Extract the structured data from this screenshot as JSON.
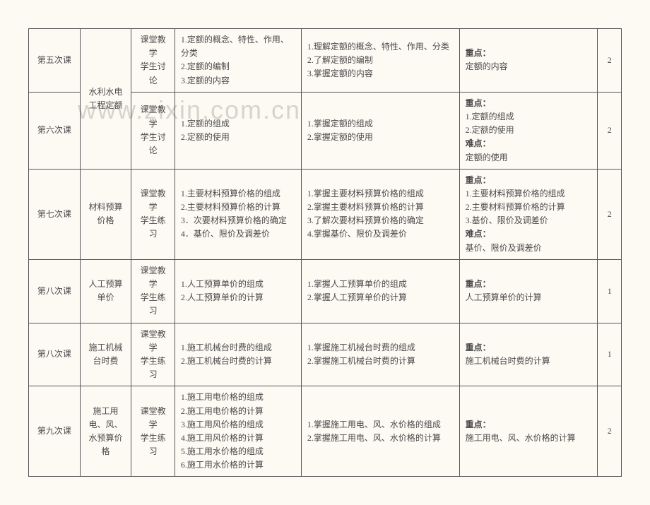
{
  "watermark": "www.zixin.com.cn",
  "labels": {
    "keypoint": "重点：",
    "difficulty": "难点："
  },
  "rows": [
    {
      "lesson": "第五次课",
      "method": "课堂教学\n学生讨论",
      "content": "1.定额的概念、特性、作用、分类\n2.定额的编制\n3.定额的内容",
      "req": "1.理解定额的概念、特性、作用、分类\n2.了解定额的编制\n3.掌握定额的内容",
      "key_points": "定额的内容",
      "hours": "2"
    },
    {
      "lesson": "第六次课",
      "topic": "水利水电工程定额",
      "method": "课堂教学\n学生讨论",
      "content": "1.定额的组成\n2.定额的使用",
      "req": "1.掌握定额的组成\n2.掌握定额的使用",
      "key_points": "1.定额的组成\n2.定额的使用",
      "diff_points": "定额的使用",
      "hours": "2"
    },
    {
      "lesson": "第七次课",
      "topic": "材料预算价格",
      "method": "课堂教学\n学生练习",
      "content": "1.主要材料预算价格的组成\n2.主要材料预算价格的计算\n3．次要材料预算价格的确定\n4．基价、限价及调差价",
      "req": "1.掌握主要材料预算价格的组成\n2.掌握主要材料预算价格的计算\n3.了解次要材料预算价格的确定\n4.掌握基价、限价及调差价",
      "key_points": "1.主要材料预算价格的组成\n2.主要材料预算价格的计算\n3.基价、限价及调差价",
      "diff_points": "基价、限价及调差价",
      "hours": "2"
    },
    {
      "lesson": "第八次课",
      "topic": "人工预算单价",
      "method": "课堂教学\n学生练习",
      "content": "1.人工预算单价的组成\n2.人工预算单价的计算",
      "req": "1.掌握人工预算单价的组成\n2.掌握人工预算单价的计算",
      "key_points": "人工预算单价的计算",
      "hours": "1"
    },
    {
      "lesson": "第八次课",
      "topic": "施工机械台时费",
      "method": "课堂教学\n学生练习",
      "content": "1.施工机械台时费的组成\n2.施工机械台时费的计算",
      "req": "1.掌握施工机械台时费的组成\n2.掌握施工机械台时费的计算",
      "key_points": "施工机械台时费的计算",
      "hours": "1"
    },
    {
      "lesson": "第九次课",
      "topic": "施工用电、风、水预算价格",
      "method": "课堂教学\n学生练习",
      "content": "1.施工用电价格的组成\n2.施工用电价格的计算\n3.施工用风价格的组成\n4.施工用风价格的计算\n5.施工用水价格的组成\n6.施工用水价格的计算",
      "req": "1.掌握施工用电、风、水价格的组成\n2.掌握施工用电、风、水价格的计算",
      "key_points": "施工用电、风、水价格的计算",
      "hours": "2"
    }
  ]
}
